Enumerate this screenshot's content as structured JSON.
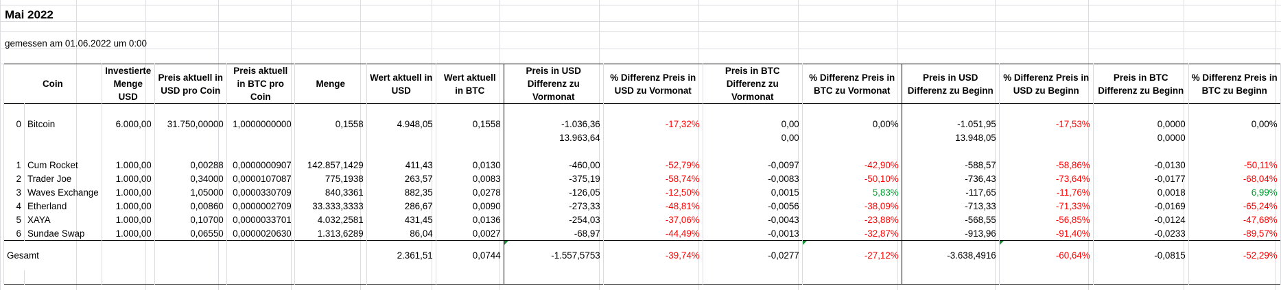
{
  "title": "Mai 2022",
  "measured": "gemessen am 01.06.2022 um 0:00",
  "headers": {
    "coin": "Coin",
    "invested": "Investierte Menge USD",
    "price_usd": "Preis aktuell in USD pro Coin",
    "price_btc": "Preis aktuell in BTC pro Coin",
    "amount": "Menge",
    "value_usd": "Wert aktuell in USD",
    "value_btc": "Wert aktuell in BTC",
    "diff_usd_prev": "Preis in USD Differenz zu Vormonat",
    "pct_usd_prev": "% Differenz Preis in USD zu Vormonat",
    "diff_btc_prev": "Preis in BTC Differenz zu Vormonat",
    "pct_btc_prev": "% Differenz Preis in BTC zu Vormonat",
    "diff_usd_start": "Preis in USD Differenz zu Beginn",
    "pct_usd_start": "% Differenz Preis in USD zu Beginn",
    "diff_btc_start": "Preis in BTC Differenz zu Beginn",
    "pct_btc_start": "% Differenz Preis in BTC zu Beginn"
  },
  "bitcoin": {
    "idx": "0",
    "name": "Bitcoin",
    "invested": "6.000,00",
    "price_usd": "31.750,00000",
    "price_btc": "1,0000000000",
    "amount": "0,1558",
    "value_usd": "4.948,05",
    "value_btc": "0,1558",
    "diff_usd_prev": "-1.036,36",
    "pct_usd_prev": "-17,32%",
    "diff_btc_prev": "0,00",
    "pct_btc_prev": "0,00%",
    "diff_usd_start": "-1.051,95",
    "pct_usd_start": "-17,53%",
    "diff_btc_start": "0,0000",
    "pct_btc_start": "0,00%"
  },
  "bitcoin_sub": {
    "diff_usd_prev": "13.963,64",
    "diff_btc_prev": "0,00",
    "diff_usd_start": "13.948,05",
    "diff_btc_start": "0,0000"
  },
  "coins": [
    {
      "idx": "1",
      "name": "Cum Rocket",
      "invested": "1.000,00",
      "price_usd": "0,00288",
      "price_btc": "0,0000000907",
      "amount": "142.857,1429",
      "value_usd": "411,43",
      "value_btc": "0,0130",
      "diff_usd_prev": "-460,00",
      "pct_usd_prev": "-52,79%",
      "diff_btc_prev": "-0,0097",
      "pct_btc_prev": "-42,90%",
      "diff_usd_start": "-588,57",
      "pct_usd_start": "-58,86%",
      "diff_btc_start": "-0,0130",
      "pct_btc_start": "-50,11%"
    },
    {
      "idx": "2",
      "name": "Trader Joe",
      "invested": "1.000,00",
      "price_usd": "0,34000",
      "price_btc": "0,0000107087",
      "amount": "775,1938",
      "value_usd": "263,57",
      "value_btc": "0,0083",
      "diff_usd_prev": "-375,19",
      "pct_usd_prev": "-58,74%",
      "diff_btc_prev": "-0,0083",
      "pct_btc_prev": "-50,10%",
      "diff_usd_start": "-736,43",
      "pct_usd_start": "-73,64%",
      "diff_btc_start": "-0,0177",
      "pct_btc_start": "-68,04%"
    },
    {
      "idx": "3",
      "name": "Waves Exchange",
      "invested": "1.000,00",
      "price_usd": "1,05000",
      "price_btc": "0,0000330709",
      "amount": "840,3361",
      "value_usd": "882,35",
      "value_btc": "0,0278",
      "diff_usd_prev": "-126,05",
      "pct_usd_prev": "-12,50%",
      "diff_btc_prev": "0,0015",
      "pct_btc_prev": "5,83%",
      "diff_usd_start": "-117,65",
      "pct_usd_start": "-11,76%",
      "diff_btc_start": "0,0018",
      "pct_btc_start": "6,99%"
    },
    {
      "idx": "4",
      "name": "Etherland",
      "invested": "1.000,00",
      "price_usd": "0,00860",
      "price_btc": "0,0000002709",
      "amount": "33.333,3333",
      "value_usd": "286,67",
      "value_btc": "0,0090",
      "diff_usd_prev": "-273,33",
      "pct_usd_prev": "-48,81%",
      "diff_btc_prev": "-0,0056",
      "pct_btc_prev": "-38,09%",
      "diff_usd_start": "-713,33",
      "pct_usd_start": "-71,33%",
      "diff_btc_start": "-0,0169",
      "pct_btc_start": "-65,24%"
    },
    {
      "idx": "5",
      "name": "XAYA",
      "invested": "1.000,00",
      "price_usd": "0,10700",
      "price_btc": "0,0000033701",
      "amount": "4.032,2581",
      "value_usd": "431,45",
      "value_btc": "0,0136",
      "diff_usd_prev": "-254,03",
      "pct_usd_prev": "-37,06%",
      "diff_btc_prev": "-0,0043",
      "pct_btc_prev": "-23,88%",
      "diff_usd_start": "-568,55",
      "pct_usd_start": "-56,85%",
      "diff_btc_start": "-0,0124",
      "pct_btc_start": "-47,68%"
    },
    {
      "idx": "6",
      "name": "Sundae Swap",
      "invested": "1.000,00",
      "price_usd": "0,06550",
      "price_btc": "0,0000020630",
      "amount": "1.313,6289",
      "value_usd": "86,04",
      "value_btc": "0,0027",
      "diff_usd_prev": "-68,97",
      "pct_usd_prev": "-44,49%",
      "diff_btc_prev": "-0,0013",
      "pct_btc_prev": "-32,87%",
      "diff_usd_start": "-913,96",
      "pct_usd_start": "-91,40%",
      "diff_btc_start": "-0,0233",
      "pct_btc_start": "-89,57%"
    }
  ],
  "total": {
    "label": "Gesamt",
    "value_usd": "2.361,51",
    "value_btc": "0,0744",
    "diff_usd_prev": "-1.557,5753",
    "pct_usd_prev": "-39,74%",
    "diff_btc_prev": "-0,0277",
    "pct_btc_prev": "-27,12%",
    "diff_usd_start": "-3.638,4916",
    "pct_usd_start": "-60,64%",
    "diff_btc_start": "-0,0815",
    "pct_btc_start": "-52,29%"
  },
  "colors": {
    "negative": "#ff0000",
    "positive": "#00a030",
    "gridline": "#dadcdf",
    "border": "#000000"
  }
}
